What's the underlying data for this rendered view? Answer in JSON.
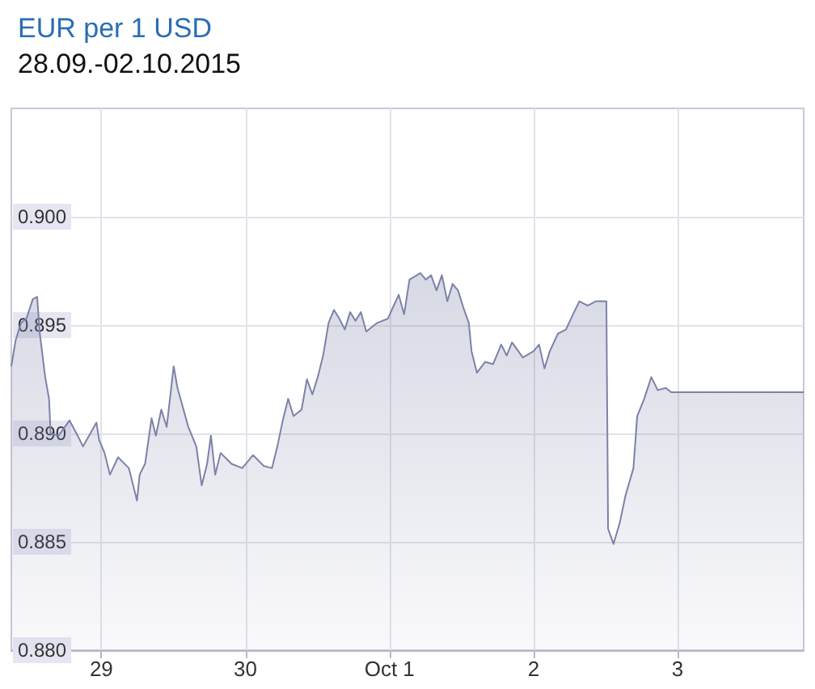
{
  "chart_data": {
    "type": "area",
    "title": "EUR per 1 USD",
    "subtitle": "28.09.-02.10.2015",
    "x": [
      "2015-09-28T09:00",
      "2015-09-28T09:43",
      "2015-09-28T10:37",
      "2015-09-28T11:31",
      "2015-09-28T12:35",
      "2015-09-28T13:18",
      "2015-09-28T13:45",
      "2015-09-28T14:39",
      "2015-09-28T15:17",
      "2015-09-28T15:33",
      "2015-09-28T16:54",
      "2015-09-28T18:42",
      "2015-09-28T20:03",
      "2015-09-28T20:57",
      "2015-09-28T23:11",
      "2015-09-28T23:38",
      "2015-09-29T00:32",
      "2015-09-29T01:26",
      "2015-09-29T02:47",
      "2015-09-29T04:35",
      "2015-09-29T05:56",
      "2015-09-29T06:23",
      "2015-09-29T07:17",
      "2015-09-29T08:22",
      "2015-09-29T09:05",
      "2015-09-29T09:59",
      "2015-09-29T10:53",
      "2015-09-29T12:03",
      "2015-09-29T12:41",
      "2015-09-29T13:35",
      "2015-09-29T14:29",
      "2015-09-29T15:49",
      "2015-09-29T16:43",
      "2015-09-29T17:37",
      "2015-09-29T18:15",
      "2015-09-29T18:58",
      "2015-09-29T19:52",
      "2015-09-29T21:40",
      "2015-09-29T23:28",
      "2015-09-30T01:16",
      "2015-09-30T03:04",
      "2015-09-30T04:25",
      "2015-09-30T05:19",
      "2015-09-30T06:13",
      "2015-09-30T07:07",
      "2015-09-30T08:01",
      "2015-09-30T09:21",
      "2015-09-30T10:15",
      "2015-09-30T11:09",
      "2015-09-30T12:03",
      "2015-09-30T12:57",
      "2015-09-30T13:51",
      "2015-09-30T14:45",
      "2015-09-30T15:39",
      "2015-09-30T16:33",
      "2015-09-30T17:27",
      "2015-09-30T18:20",
      "2015-09-30T19:14",
      "2015-09-30T20:08",
      "2015-09-30T21:56",
      "2015-09-30T23:44",
      "2015-10-01T01:32",
      "2015-10-01T02:26",
      "2015-10-01T03:20",
      "2015-10-01T05:08",
      "2015-10-01T06:02",
      "2015-10-01T06:56",
      "2015-10-01T07:50",
      "2015-10-01T08:44",
      "2015-10-01T09:38",
      "2015-10-01T10:31",
      "2015-10-01T11:25",
      "2015-10-01T12:19",
      "2015-10-01T13:13",
      "2015-10-01T13:40",
      "2015-10-01T14:34",
      "2015-10-01T15:55",
      "2015-10-01T17:16",
      "2015-10-01T18:37",
      "2015-10-01T19:31",
      "2015-10-01T20:25",
      "2015-10-01T22:13",
      "2015-10-02T00:01",
      "2015-10-02T00:55",
      "2015-10-02T01:49",
      "2015-10-02T02:43",
      "2015-10-02T04:03",
      "2015-10-02T05:24",
      "2015-10-02T06:45",
      "2015-10-02T07:39",
      "2015-10-02T09:00",
      "2015-10-02T10:21",
      "2015-10-02T12:08",
      "2015-10-02T12:25",
      "2015-10-02T13:19",
      "2015-10-02T14:23",
      "2015-10-02T15:17",
      "2015-10-02T16:38",
      "2015-10-02T17:16",
      "2015-10-02T18:26",
      "2015-10-02T19:37",
      "2015-10-02T20:41",
      "2015-10-02T22:02",
      "2015-10-02T22:56",
      "2015-10-03T21:00"
    ],
    "series": [
      {
        "color": "#7c82a8",
        "values": [
          0.8931,
          0.8943,
          0.8951,
          0.8953,
          0.8962,
          0.8963,
          0.8946,
          0.8926,
          0.8916,
          0.89,
          0.8899,
          0.8906,
          0.8899,
          0.8894,
          0.8905,
          0.8897,
          0.8891,
          0.8881,
          0.8889,
          0.8884,
          0.8869,
          0.8881,
          0.8886,
          0.8907,
          0.8899,
          0.8911,
          0.8903,
          0.8931,
          0.8921,
          0.8912,
          0.8903,
          0.8894,
          0.8876,
          0.8886,
          0.8899,
          0.8881,
          0.8891,
          0.8886,
          0.8884,
          0.889,
          0.8885,
          0.8884,
          0.8894,
          0.8906,
          0.8916,
          0.8908,
          0.8911,
          0.8925,
          0.8918,
          0.8926,
          0.8936,
          0.8951,
          0.8957,
          0.8953,
          0.8948,
          0.8956,
          0.8952,
          0.8956,
          0.8947,
          0.8951,
          0.8953,
          0.8964,
          0.8955,
          0.8971,
          0.8974,
          0.8971,
          0.8973,
          0.8966,
          0.8973,
          0.8961,
          0.8969,
          0.8966,
          0.8958,
          0.8951,
          0.8938,
          0.8928,
          0.8933,
          0.8932,
          0.8941,
          0.8936,
          0.8942,
          0.8935,
          0.8938,
          0.8941,
          0.893,
          0.8938,
          0.8946,
          0.8948,
          0.8956,
          0.8961,
          0.8959,
          0.8961,
          0.8961,
          0.8856,
          0.8849,
          0.8859,
          0.8871,
          0.8884,
          0.8908,
          0.8916,
          0.8926,
          0.892,
          0.8921,
          0.8919,
          0.8919
        ]
      }
    ],
    "xlim": [
      "2015-09-28T09:00",
      "2015-10-03T21:00"
    ],
    "xticks": [
      {
        "value": "2015-09-29T00:00",
        "label": "29"
      },
      {
        "value": "2015-09-30T00:00",
        "label": "30"
      },
      {
        "value": "2015-10-01T00:00",
        "label": "Oct 1"
      },
      {
        "value": "2015-10-02T00:00",
        "label": "2"
      },
      {
        "value": "2015-10-03T00:00",
        "label": "3"
      }
    ],
    "ylim": [
      0.88,
      0.905
    ],
    "yticks": [
      {
        "value": 0.88,
        "label": "0.880"
      },
      {
        "value": 0.885,
        "label": "0.885"
      },
      {
        "value": 0.89,
        "label": "0.890"
      },
      {
        "value": 0.895,
        "label": "0.895"
      },
      {
        "value": 0.9,
        "label": "0.900"
      }
    ],
    "grid": true,
    "marker": "none",
    "line_style": "solid"
  }
}
